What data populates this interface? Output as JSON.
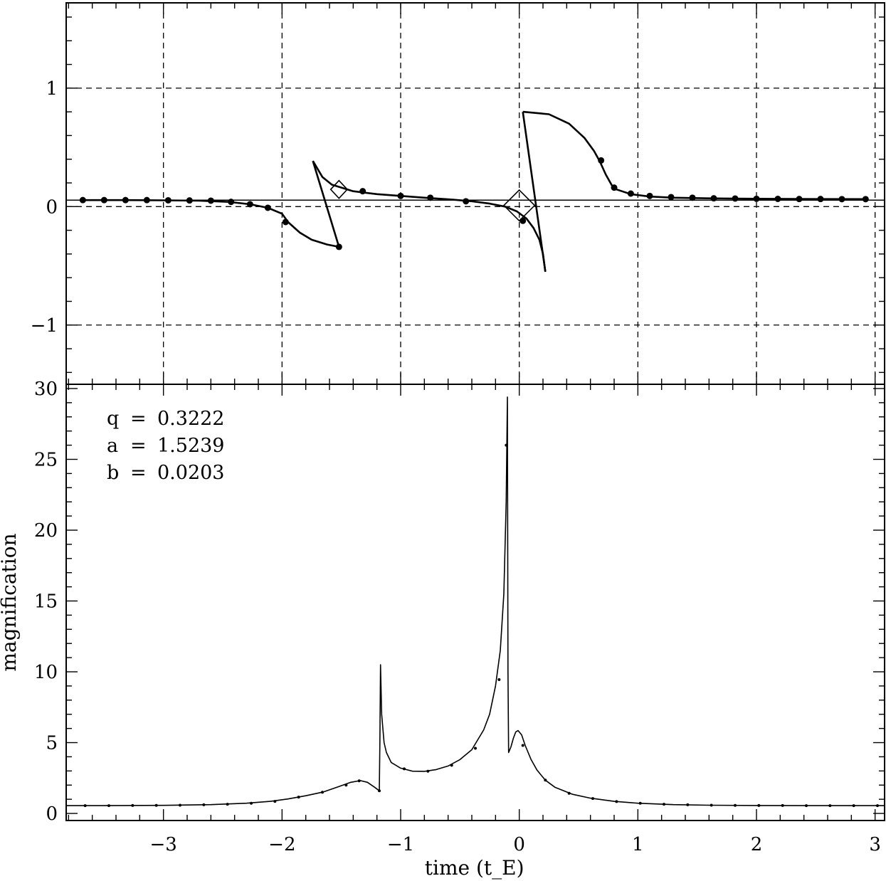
{
  "chart_data": [
    {
      "id": "caustic-panel",
      "type": "line",
      "title": "",
      "xlabel": "",
      "ylabel": "",
      "xlim": [
        -3.82,
        3.08
      ],
      "ylim": [
        -1.5,
        1.72
      ],
      "grid": true,
      "x_ticks": [
        -3,
        -2,
        -1,
        0,
        1,
        2,
        3
      ],
      "y_ticks": [
        -1,
        0,
        1
      ],
      "y_tick_labels": [
        "−1",
        "0",
        "1"
      ],
      "trajectory": {
        "slope": 0,
        "intercept": 0.0545
      },
      "caustics": [
        {
          "name": "",
          "outline": [
            [
              -1.74,
              0.385
            ],
            [
              -1.66,
              0.25
            ],
            [
              -1.58,
              0.185
            ],
            [
              -1.4,
              0.13
            ],
            [
              -1.2,
              0.105
            ],
            [
              -1.0,
              0.09
            ],
            [
              -0.8,
              0.075
            ],
            [
              -0.6,
              0.062
            ],
            [
              -0.4,
              0.045
            ],
            [
              -0.25,
              0.025
            ],
            [
              -0.12,
              0.0
            ],
            [
              -0.02,
              -0.04
            ],
            [
              0.06,
              -0.1
            ],
            [
              0.12,
              -0.18
            ],
            [
              0.17,
              -0.28
            ],
            [
              0.2,
              -0.4
            ],
            [
              0.22,
              -0.55
            ]
          ],
          "closing_segment": [
            [
              0.22,
              -0.55
            ],
            [
              0.03,
              0.8
            ]
          ]
        },
        {
          "name": "",
          "outline": [
            [
              0.03,
              0.8
            ],
            [
              0.25,
              0.78
            ],
            [
              0.42,
              0.7
            ],
            [
              0.55,
              0.58
            ],
            [
              0.63,
              0.47
            ],
            [
              0.68,
              0.38
            ],
            [
              0.73,
              0.27
            ],
            [
              0.78,
              0.18
            ],
            [
              0.82,
              0.145
            ],
            [
              0.94,
              0.105
            ],
            [
              1.1,
              0.085
            ],
            [
              1.3,
              0.075
            ],
            [
              1.6,
              0.07
            ],
            [
              2.0,
              0.066
            ],
            [
              2.5,
              0.064
            ],
            [
              2.94,
              0.063
            ]
          ]
        },
        {
          "name": "",
          "outline": [
            [
              -3.68,
              0.055
            ],
            [
              -3.3,
              0.055
            ],
            [
              -3.0,
              0.053
            ],
            [
              -2.7,
              0.05
            ],
            [
              -2.45,
              0.04
            ],
            [
              -2.27,
              0.02
            ],
            [
              -2.12,
              -0.01
            ],
            [
              -2.0,
              -0.06
            ],
            [
              -1.95,
              -0.13
            ],
            [
              -1.85,
              -0.22
            ],
            [
              -1.75,
              -0.28
            ],
            [
              -1.62,
              -0.32
            ],
            [
              -1.52,
              -0.34
            ]
          ],
          "closing_segment": [
            [
              -1.52,
              -0.34
            ],
            [
              -1.74,
              0.385
            ]
          ]
        }
      ],
      "marker_points": [
        [
          -3.68,
          0.055
        ],
        [
          -3.5,
          0.055
        ],
        [
          -3.32,
          0.055
        ],
        [
          -3.14,
          0.055
        ],
        [
          -2.96,
          0.053
        ],
        [
          -2.78,
          0.052
        ],
        [
          -2.6,
          0.05
        ],
        [
          -2.43,
          0.04
        ],
        [
          -2.27,
          0.02
        ],
        [
          -2.12,
          -0.01
        ],
        [
          -1.97,
          -0.13
        ],
        [
          -1.52,
          -0.34
        ],
        [
          -1.32,
          0.13
        ],
        [
          -1.0,
          0.09
        ],
        [
          -0.75,
          0.075
        ],
        [
          -0.45,
          0.045
        ],
        [
          0.03,
          -0.12
        ],
        [
          0.69,
          0.39
        ],
        [
          0.8,
          0.16
        ],
        [
          0.94,
          0.11
        ],
        [
          1.1,
          0.09
        ],
        [
          1.28,
          0.08
        ],
        [
          1.46,
          0.075
        ],
        [
          1.64,
          0.07
        ],
        [
          1.82,
          0.068
        ],
        [
          2.0,
          0.066
        ],
        [
          2.18,
          0.065
        ],
        [
          2.36,
          0.064
        ],
        [
          2.54,
          0.064
        ],
        [
          2.72,
          0.063
        ],
        [
          2.92,
          0.063
        ]
      ],
      "source_markers": [
        {
          "x": -1.52,
          "y": 0.145,
          "half_width": 0.07,
          "half_height": 0.075
        },
        {
          "x": 0.0,
          "y": 0.01,
          "half_width": 0.13,
          "half_height": 0.13
        }
      ]
    },
    {
      "id": "light-curve-panel",
      "type": "line",
      "title": "",
      "xlabel": "time (t_E)",
      "ylabel": "magnification",
      "xlim": [
        -3.82,
        3.08
      ],
      "ylim": [
        -0.5,
        30.3
      ],
      "grid": false,
      "x_ticks": [
        -3,
        -2,
        -1,
        0,
        1,
        2,
        3
      ],
      "x_tick_labels": [
        "−3",
        "−2",
        "−1",
        "0",
        "1",
        "2",
        "3"
      ],
      "y_ticks": [
        0,
        5,
        10,
        15,
        20,
        25,
        30
      ],
      "series": [
        {
          "name": "",
          "x": [
            -3.82,
            -3.5,
            -3.0,
            -2.6,
            -2.3,
            -2.1,
            -1.95,
            -1.8,
            -1.65,
            -1.52,
            -1.42,
            -1.34,
            -1.28,
            -1.22,
            -1.18,
            -1.175,
            -1.17,
            -1.16,
            -1.14,
            -1.12,
            -1.08,
            -1.0,
            -0.9,
            -0.8,
            -0.7,
            -0.6,
            -0.5,
            -0.4,
            -0.3,
            -0.25,
            -0.2,
            -0.16,
            -0.13,
            -0.11,
            -0.105,
            -0.1,
            -0.095,
            -0.09,
            -0.07,
            -0.05,
            -0.03,
            -0.01,
            0.02,
            0.05,
            0.1,
            0.15,
            0.22,
            0.3,
            0.45,
            0.6,
            0.8,
            1.0,
            1.3,
            1.6,
            2.0,
            2.5,
            3.08
          ],
          "y": [
            0.55,
            0.55,
            0.57,
            0.62,
            0.72,
            0.85,
            1.02,
            1.25,
            1.52,
            1.9,
            2.2,
            2.32,
            2.2,
            1.85,
            1.6,
            5.0,
            10.5,
            7.0,
            5.0,
            4.3,
            3.6,
            3.2,
            2.98,
            2.97,
            3.1,
            3.35,
            3.8,
            4.5,
            5.9,
            7.0,
            9.0,
            11.5,
            15.5,
            22.0,
            26.0,
            29.4,
            10.0,
            4.3,
            4.7,
            5.3,
            5.75,
            5.85,
            5.55,
            4.8,
            3.8,
            3.05,
            2.35,
            1.85,
            1.35,
            1.08,
            0.85,
            0.72,
            0.62,
            0.58,
            0.56,
            0.55,
            0.55
          ]
        }
      ],
      "sample_points": [
        [
          -3.66,
          0.55
        ],
        [
          -3.46,
          0.55
        ],
        [
          -3.26,
          0.56
        ],
        [
          -3.06,
          0.57
        ],
        [
          -2.86,
          0.58
        ],
        [
          -2.66,
          0.61
        ],
        [
          -2.46,
          0.65
        ],
        [
          -2.26,
          0.72
        ],
        [
          -2.06,
          0.85
        ],
        [
          -1.86,
          1.15
        ],
        [
          -1.66,
          1.5
        ],
        [
          -1.46,
          2.0
        ],
        [
          -1.35,
          2.3
        ],
        [
          -1.18,
          1.6
        ],
        [
          -0.97,
          3.15
        ],
        [
          -0.77,
          2.98
        ],
        [
          -0.57,
          3.4
        ],
        [
          -0.37,
          4.6
        ],
        [
          -0.17,
          9.45
        ],
        [
          -0.11,
          26.0
        ],
        [
          0.03,
          4.8
        ],
        [
          0.22,
          2.35
        ],
        [
          0.42,
          1.42
        ],
        [
          0.62,
          1.05
        ],
        [
          0.82,
          0.84
        ],
        [
          1.02,
          0.72
        ],
        [
          1.22,
          0.65
        ],
        [
          1.42,
          0.61
        ],
        [
          1.62,
          0.58
        ],
        [
          1.82,
          0.57
        ],
        [
          2.02,
          0.56
        ],
        [
          2.22,
          0.56
        ],
        [
          2.42,
          0.55
        ],
        [
          2.62,
          0.55
        ],
        [
          2.82,
          0.55
        ],
        [
          3.02,
          0.55
        ]
      ],
      "parameters": [
        {
          "symbol": "q",
          "value": "0.3222"
        },
        {
          "symbol": "a",
          "value": "1.5239"
        },
        {
          "symbol": "b",
          "value": "0.0203"
        }
      ]
    }
  ]
}
